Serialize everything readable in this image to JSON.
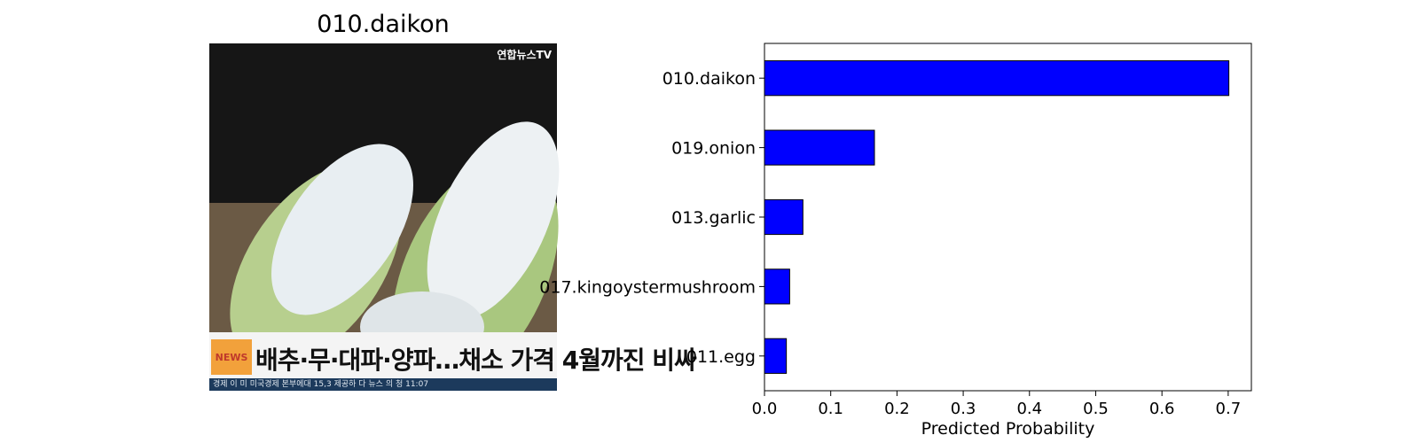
{
  "image_panel": {
    "title": "010.daikon",
    "watermark": "연합뉴스TV",
    "caption": "배추·무·대파·양파…채소 가격 4월까진 비싸",
    "ticker": "경제 이 미 미국경제 본부에대 15,3 제공하 다 뉴스 의 청 11:07"
  },
  "chart_data": {
    "type": "bar",
    "orientation": "horizontal",
    "categories": [
      "010.daikon",
      "019.onion",
      "013.garlic",
      "017.kingoystermushroom",
      "011.egg"
    ],
    "values": [
      0.701,
      0.166,
      0.058,
      0.038,
      0.033
    ],
    "xlabel": "Predicted Probability",
    "ylabel": "",
    "xlim": [
      0,
      0.735
    ],
    "xticks": [
      "0.0",
      "0.1",
      "0.2",
      "0.3",
      "0.4",
      "0.5",
      "0.6",
      "0.7"
    ],
    "bar_color": "#0000ff",
    "edge_color": "#000000",
    "grid": false
  }
}
